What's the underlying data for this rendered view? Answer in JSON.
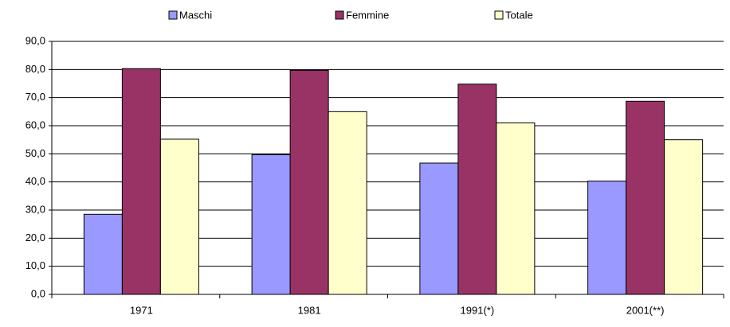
{
  "chart_data": {
    "type": "bar",
    "categories": [
      "1971",
      "1981",
      "1991(*)",
      "2001(**)"
    ],
    "series": [
      {
        "name": "Maschi",
        "color": "#9999ff",
        "values": [
          28.5,
          49.7,
          46.7,
          40.3
        ]
      },
      {
        "name": "Femmine",
        "color": "#993366",
        "values": [
          80.3,
          79.7,
          74.8,
          68.7
        ]
      },
      {
        "name": "Totale",
        "color": "#ffffcc",
        "values": [
          55.2,
          65.0,
          61.0,
          55.0
        ]
      }
    ],
    "ylim": [
      0,
      90
    ],
    "yticks": [
      {
        "value": 0,
        "label": "0,0"
      },
      {
        "value": 10,
        "label": "10,0"
      },
      {
        "value": 20,
        "label": "20,0"
      },
      {
        "value": 30,
        "label": "30,0"
      },
      {
        "value": 40,
        "label": "40,0"
      },
      {
        "value": 50,
        "label": "50,0"
      },
      {
        "value": 60,
        "label": "60,0"
      },
      {
        "value": 70,
        "label": "70,0"
      },
      {
        "value": 80,
        "label": "80,0"
      },
      {
        "value": 90,
        "label": "90,0"
      }
    ],
    "grid": true,
    "legend": "top"
  }
}
